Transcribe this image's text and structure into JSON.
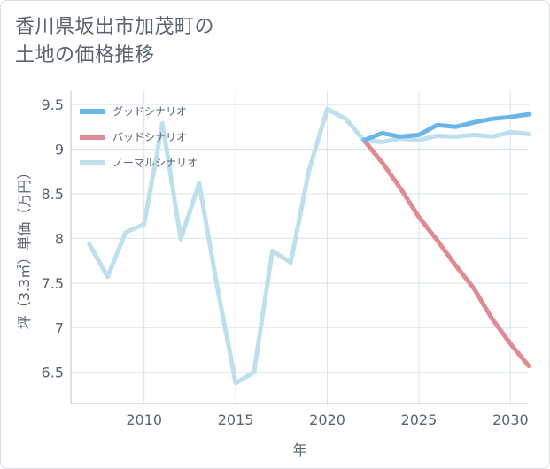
{
  "title_lines": [
    "香川県坂出市加茂町の",
    "土地の価格推移"
  ],
  "chart_data": {
    "type": "line",
    "xlabel": "年",
    "ylabel": "坪（3.3㎡）単価（万円）",
    "xlim": [
      2006,
      2031
    ],
    "ylim": [
      6.15,
      9.65
    ],
    "x_ticks": [
      2010,
      2015,
      2020,
      2025,
      2030
    ],
    "y_ticks": [
      6.5,
      7,
      7.5,
      8,
      8.5,
      9,
      9.5
    ],
    "x_tick_labels": [
      "2010",
      "2015",
      "2020",
      "2025",
      "2030"
    ],
    "y_tick_labels": [
      "6.5",
      "7",
      "7.5",
      "8",
      "8.5",
      "9",
      "9.5"
    ],
    "grid": true,
    "legend_position": "top-left",
    "series": [
      {
        "name": "グッドシナリオ",
        "color": "#6bb5e8",
        "x": [
          2022,
          2023,
          2024,
          2025,
          2026,
          2027,
          2028,
          2029,
          2030,
          2031
        ],
        "y": [
          9.1,
          9.18,
          9.14,
          9.16,
          9.27,
          9.25,
          9.3,
          9.34,
          9.36,
          9.39
        ]
      },
      {
        "name": "バッドシナリオ",
        "color": "#e08a94",
        "x": [
          2022,
          2023,
          2024,
          2025,
          2026,
          2027,
          2028,
          2029,
          2030,
          2031
        ],
        "y": [
          9.1,
          8.85,
          8.56,
          8.24,
          7.98,
          7.7,
          7.44,
          7.1,
          6.82,
          6.57
        ]
      },
      {
        "name": "ノーマルシナリオ",
        "color": "#bde0ec",
        "x": [
          2007,
          2008,
          2009,
          2010,
          2011,
          2012,
          2013,
          2014,
          2015,
          2016,
          2017,
          2018,
          2019,
          2020,
          2021,
          2022,
          2023,
          2024,
          2025,
          2026,
          2027,
          2028,
          2029,
          2030,
          2031
        ],
        "y": [
          7.94,
          7.57,
          8.07,
          8.16,
          9.29,
          7.99,
          8.62,
          7.45,
          6.38,
          6.5,
          7.86,
          7.73,
          8.76,
          9.45,
          9.34,
          9.1,
          9.08,
          9.12,
          9.1,
          9.15,
          9.14,
          9.16,
          9.14,
          9.19,
          9.17
        ]
      }
    ]
  }
}
